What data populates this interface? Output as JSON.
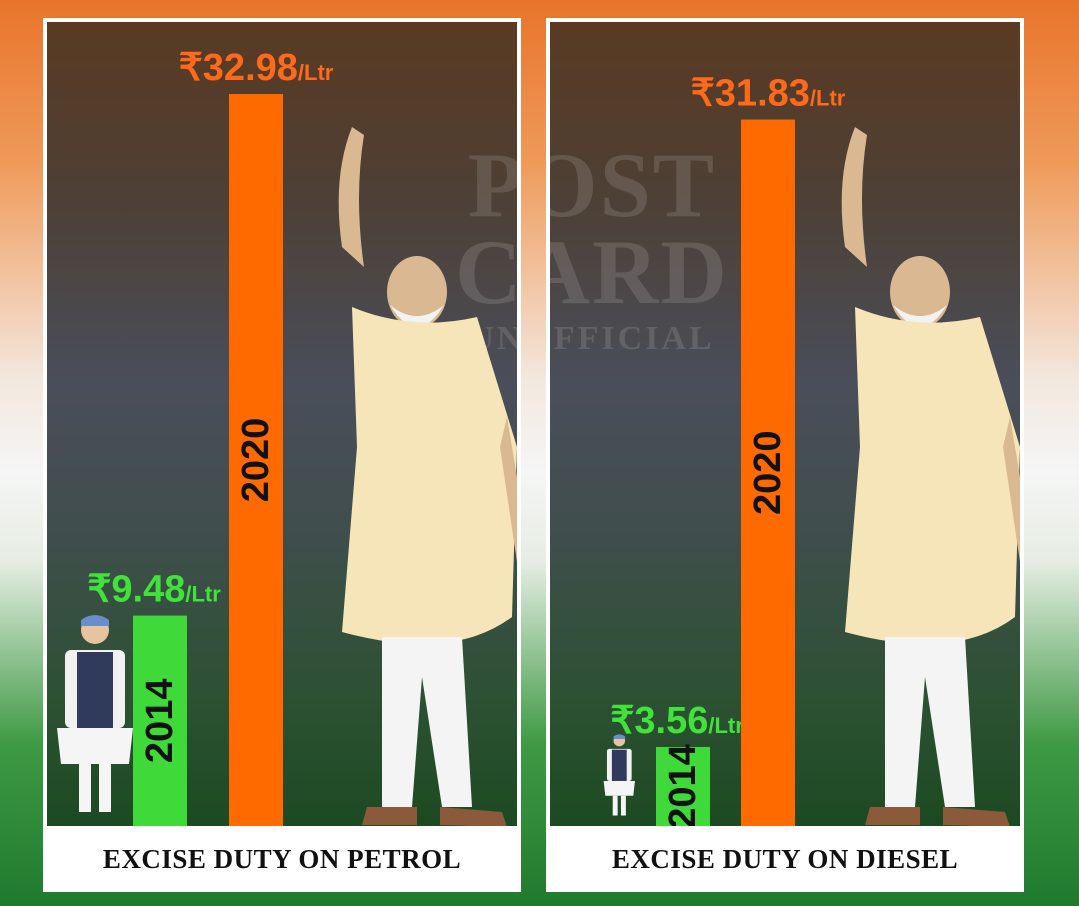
{
  "watermark": {
    "line1": "POST",
    "line2": "CARD",
    "line3": "UNOFFICIAL"
  },
  "colors": {
    "bar_2014": "#3fd93a",
    "bar_2020": "#ff6a00",
    "label_2014": "#41e23a",
    "label_2020": "#ff6a1a"
  },
  "chart_data": [
    {
      "type": "bar",
      "title": "EXCISE DUTY ON PETROL",
      "categories": [
        "2014",
        "2020"
      ],
      "values": [
        9.48,
        32.98
      ],
      "value_labels": [
        {
          "amount": "₹9.48",
          "unit": "/Ltr"
        },
        {
          "amount": "₹32.98",
          "unit": "/Ltr"
        }
      ],
      "ylim": [
        0,
        32.98
      ]
    },
    {
      "type": "bar",
      "title": "EXCISE DUTY ON DIESEL",
      "categories": [
        "2014",
        "2020"
      ],
      "values": [
        3.56,
        31.83
      ],
      "value_labels": [
        {
          "amount": "₹3.56",
          "unit": "/Ltr"
        },
        {
          "amount": "₹31.83",
          "unit": "/Ltr"
        }
      ],
      "ylim": [
        0,
        32.98
      ]
    }
  ]
}
